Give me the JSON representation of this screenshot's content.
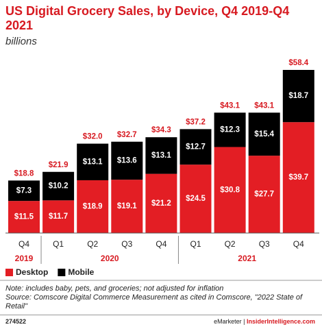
{
  "chart_data": {
    "type": "stacked_bar",
    "title": "US Digital Grocery Sales, by Device, Q4 2019-Q4 2021",
    "subtitle": "billions",
    "groups": [
      {
        "name": "2019",
        "categories": [
          "Q4"
        ]
      },
      {
        "name": "2020",
        "categories": [
          "Q1",
          "Q2",
          "Q3",
          "Q4"
        ]
      },
      {
        "name": "2021",
        "categories": [
          "Q1",
          "Q2",
          "Q3",
          "Q4"
        ]
      }
    ],
    "series": [
      {
        "name": "Desktop",
        "color": "#e31e24",
        "values": [
          11.5,
          11.7,
          18.9,
          19.1,
          21.2,
          24.5,
          30.8,
          27.7,
          39.7
        ],
        "value_labels": [
          "$11.5",
          "$11.7",
          "$18.9",
          "$19.1",
          "$21.2",
          "$24.5",
          "$30.8",
          "$27.7",
          "$39.7"
        ]
      },
      {
        "name": "Mobile",
        "color": "#000000",
        "values": [
          7.3,
          10.2,
          13.1,
          13.6,
          13.1,
          12.7,
          12.3,
          15.4,
          18.7
        ],
        "value_labels": [
          "$7.3",
          "$10.2",
          "$13.1",
          "$13.6",
          "$13.1",
          "$12.7",
          "$12.3",
          "$15.4",
          "$18.7"
        ]
      }
    ],
    "totals": [
      18.8,
      21.9,
      32.0,
      32.7,
      34.3,
      37.2,
      43.1,
      43.1,
      58.4
    ],
    "total_labels": [
      "$18.8",
      "$21.9",
      "$32.0",
      "$32.7",
      "$34.3",
      "$37.2",
      "$43.1",
      "$43.1",
      "$58.4"
    ],
    "note": "Note: includes baby, pets, and groceries; not adjusted for inflation",
    "source": "Source: Comscore Digital Commerce Measurement as cited in Comscore, \"2022 State of Retail\"",
    "chart_id": "274522",
    "brand": "eMarketer",
    "website": "InsiderIntelligence.com"
  }
}
